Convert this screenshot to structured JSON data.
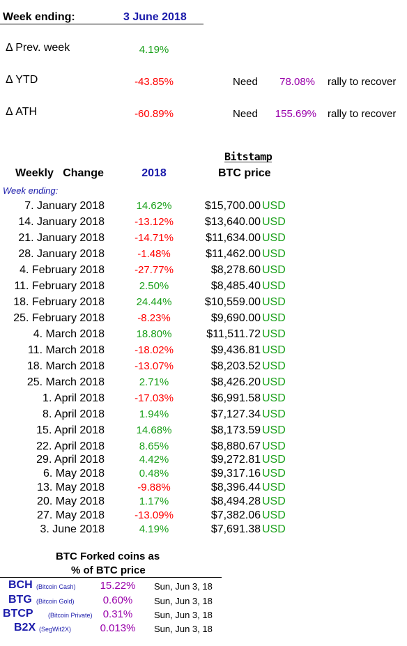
{
  "header": {
    "label": "Week ending:",
    "date": "3 June 2018"
  },
  "metrics": [
    {
      "label": "Δ Prev. week",
      "value": "4.19%",
      "color": "#1aa01a"
    },
    {
      "label": "Δ YTD",
      "value": "-43.85%",
      "color": "#ff0000",
      "need": "Need",
      "need_pct": "78.08%",
      "rally": "rally to recover"
    },
    {
      "label": "Δ ATH",
      "value": "-60.89%",
      "color": "#ff0000",
      "need": "Need",
      "need_pct": "155.69%",
      "rally": "rally to recover"
    }
  ],
  "table": {
    "exchange_logo_text": "Bitstamp",
    "col_change_header": "Weekly   Change",
    "col_year_header": "2018",
    "col_price_header": "BTC price",
    "week_ending_label": "Week ending:",
    "currency": "USD",
    "rows": [
      {
        "date": "7. January 2018",
        "change": "14.62%",
        "dir": "up",
        "price": "$15,700.00"
      },
      {
        "date": "14. January 2018",
        "change": "-13.12%",
        "dir": "down",
        "price": "$13,640.00"
      },
      {
        "date": "21. January 2018",
        "change": "-14.71%",
        "dir": "down",
        "price": "$11,634.00"
      },
      {
        "date": "28. January 2018",
        "change": "-1.48%",
        "dir": "down",
        "price": "$11,462.00"
      },
      {
        "date": "4. February 2018",
        "change": "-27.77%",
        "dir": "down",
        "price": "$8,278.60"
      },
      {
        "date": "11. February 2018",
        "change": "2.50%",
        "dir": "up",
        "price": "$8,485.40"
      },
      {
        "date": "18. February 2018",
        "change": "24.44%",
        "dir": "up",
        "price": "$10,559.00"
      },
      {
        "date": "25. February 2018",
        "change": "-8.23%",
        "dir": "down",
        "price": "$9,690.00"
      },
      {
        "date": "4. March 2018",
        "change": "18.80%",
        "dir": "up",
        "price": "$11,511.72"
      },
      {
        "date": "11. March 2018",
        "change": "-18.02%",
        "dir": "down",
        "price": "$9,436.81"
      },
      {
        "date": "18. March 2018",
        "change": "-13.07%",
        "dir": "down",
        "price": "$8,203.52"
      },
      {
        "date": "25. March 2018",
        "change": "2.71%",
        "dir": "up",
        "price": "$8,426.20"
      },
      {
        "date": "1. April 2018",
        "change": "-17.03%",
        "dir": "down",
        "price": "$6,991.58"
      },
      {
        "date": "8. April 2018",
        "change": "1.94%",
        "dir": "up",
        "price": "$7,127.34"
      },
      {
        "date": "15. April 2018",
        "change": "14.68%",
        "dir": "up",
        "price": "$8,173.59"
      },
      {
        "date": "22. April 2018",
        "change": "8.65%",
        "dir": "up",
        "price": "$8,880.67"
      },
      {
        "date": "29. April 2018",
        "change": "4.42%",
        "dir": "up",
        "price": "$9,272.81"
      },
      {
        "date": "6. May 2018",
        "change": "0.48%",
        "dir": "up",
        "price": "$9,317.16"
      },
      {
        "date": "13. May 2018",
        "change": "-9.88%",
        "dir": "down",
        "price": "$8,396.44"
      },
      {
        "date": "20. May 2018",
        "change": "1.17%",
        "dir": "up",
        "price": "$8,494.28"
      },
      {
        "date": "27. May 2018",
        "change": "-13.09%",
        "dir": "down",
        "price": "$7,382.06"
      },
      {
        "date": "3. June 2018",
        "change": "4.19%",
        "dir": "up",
        "price": "$7,691.38"
      }
    ]
  },
  "forked": {
    "title_line1": "BTC Forked coins as",
    "title_line2": "% of BTC price",
    "coins": [
      {
        "ticker": "BCH",
        "name": "(Bitcoin Cash)",
        "pct": "15.22%",
        "date": "Sun, Jun 3, 18"
      },
      {
        "ticker": "BTG",
        "name": "(Bitcoin Gold)",
        "pct": "0.60%",
        "date": "Sun, Jun 3, 18"
      },
      {
        "ticker": "BTCP",
        "name": "(Bitcoin Private)",
        "pct": "0.31%",
        "date": "Sun, Jun 3, 18"
      },
      {
        "ticker": "B2X",
        "name": "(SegWit2X)",
        "pct": "0.013%",
        "date": "Sun, Jun 3, 18"
      }
    ]
  },
  "colors": {
    "up": "#1aa01a",
    "down": "#ff0000",
    "accent_blue": "#1a1aaa",
    "purple": "#9900aa"
  }
}
